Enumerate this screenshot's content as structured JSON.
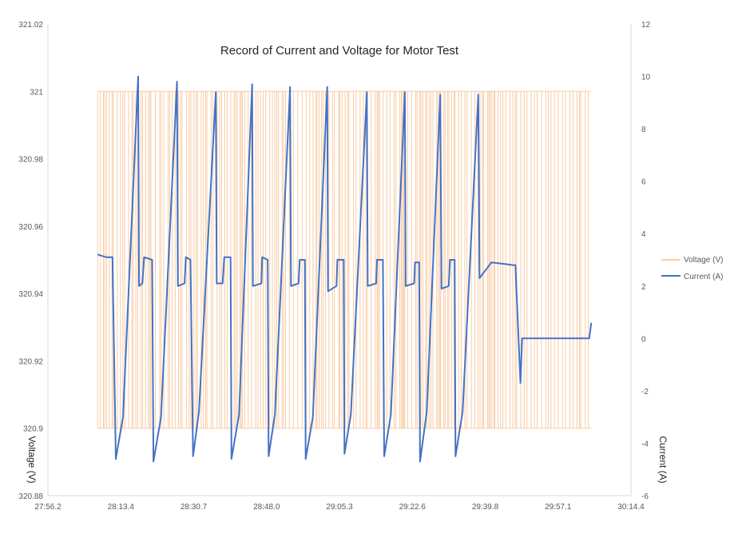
{
  "chart_data": {
    "type": "line",
    "title": "Record of Current and Voltage for Motor Test",
    "xlabel": "",
    "y_left_label": "Voltage (V)",
    "y_right_label": "Current (A)",
    "x_ticks": [
      "27:56.2",
      "28:13.4",
      "28:30.7",
      "28:48.0",
      "29:05.3",
      "29:22.6",
      "29:39.8",
      "29:57.1",
      "30:14.4"
    ],
    "y_left_ticks": [
      "320.88",
      "320.9",
      "320.92",
      "320.94",
      "320.96",
      "320.98",
      "321",
      "321.02"
    ],
    "y_right_ticks": [
      "-6",
      "-4",
      "-2",
      "0",
      "2",
      "4",
      "6",
      "8",
      "10",
      "12"
    ],
    "x_range_seconds_from_27_56_2": [
      0,
      138.2
    ],
    "y_left_range": [
      320.88,
      321.02
    ],
    "y_right_range": [
      -6,
      12
    ],
    "grid": false,
    "legend_position": "right",
    "legend": [
      "Voltage (V)",
      "Current (A)"
    ],
    "colors": {
      "voltage": "#f8cba4",
      "current": "#4472c4"
    },
    "voltage": {
      "name": "Voltage (V)",
      "levels": [
        320.9,
        321
      ],
      "note_pattern": "rapid switching between 320.9 and 321 over 28:08–30:05"
    },
    "current": {
      "name": "Current (A)",
      "x": [
        "28:08.0",
        "28:10.0",
        "28:11.5",
        "28:12.3",
        "28:14.0",
        "28:17.6",
        "28:17.8",
        "28:18.6",
        "28:19.0",
        "28:20.9",
        "28:21.2",
        "28:23.0",
        "28:26.8",
        "28:27.0",
        "28:28.6",
        "28:28.9",
        "28:30.0",
        "28:30.6",
        "28:32.0",
        "28:36.0",
        "28:36.2",
        "28:37.6",
        "28:38.0",
        "28:39.5",
        "28:39.7",
        "28:41.5",
        "28:44.6",
        "28:44.8",
        "28:46.8",
        "28:47.0",
        "28:48.3",
        "28:48.5",
        "28:50.0",
        "28:53.6",
        "28:53.8",
        "28:55.6",
        "28:55.9",
        "28:57.1",
        "28:57.3",
        "28:59.0",
        "29:02.4",
        "29:02.6",
        "29:04.6",
        "29:04.8",
        "29:06.3",
        "29:06.5",
        "29:08.0",
        "29:11.8",
        "29:12.0",
        "29:14.0",
        "29:14.2",
        "29:15.6",
        "29:15.9",
        "29:17.5",
        "29:20.8",
        "29:21.0",
        "29:23.0",
        "29:23.2",
        "29:24.2",
        "29:24.4",
        "29:26.0",
        "29:29.2",
        "29:29.5",
        "29:31.2",
        "29:31.5",
        "29:32.6",
        "29:32.8",
        "29:34.5",
        "29:38.2",
        "29:38.5",
        "29:41.3",
        "29:46.5",
        "29:47.0",
        "29:48.2",
        "29:48.6",
        "30:04.5",
        "30:05.0"
      ],
      "y": [
        3.2,
        3.1,
        3.1,
        -4.6,
        -3,
        10,
        2,
        2.1,
        3.1,
        3,
        -4.7,
        -3,
        9.8,
        2,
        2.1,
        3.1,
        3,
        -4.5,
        -2.8,
        9.4,
        2.1,
        2.1,
        3.1,
        3.1,
        -4.6,
        -2.9,
        9.7,
        2,
        2.1,
        3.1,
        3,
        -4.5,
        -2.9,
        9.6,
        2,
        2.1,
        3,
        3,
        -4.6,
        -3,
        9.6,
        1.8,
        2,
        3,
        3,
        -4.4,
        -2.9,
        9.4,
        2,
        2.1,
        3,
        3,
        -4.5,
        -2.9,
        9.4,
        2,
        2.1,
        2.9,
        2.9,
        -4.7,
        -2.8,
        9.3,
        1.9,
        2,
        3,
        3,
        -4.5,
        -2.8,
        9.3,
        2.3,
        2.9,
        2.8,
        2.8,
        -1.7,
        0,
        0,
        0.6
      ]
    }
  }
}
